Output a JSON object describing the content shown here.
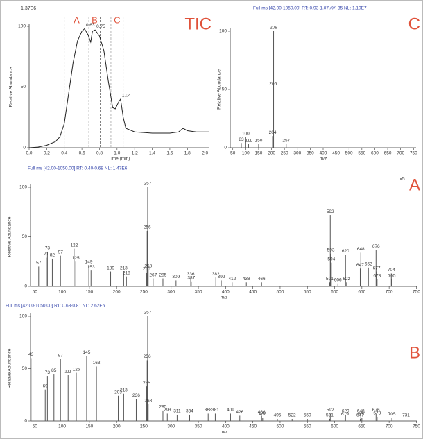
{
  "chart_data": [
    {
      "type": "line",
      "subtitle": "1.37E6",
      "panel_label": "TIC",
      "xlabel": "Time (min)",
      "ylabel": "Relative Abundance",
      "color": "#222222",
      "x": [
        0,
        0.1,
        0.2,
        0.3,
        0.35,
        0.4,
        0.45,
        0.5,
        0.55,
        0.6,
        0.63,
        0.67,
        0.7,
        0.72,
        0.75,
        0.8,
        0.85,
        0.9,
        0.95,
        0.98,
        1.02,
        1.04,
        1.07,
        1.1,
        1.2,
        1.4,
        1.6,
        1.7,
        1.75,
        1.8,
        1.9,
        2.0,
        2.05
      ],
      "values": [
        0,
        0.5,
        2,
        5,
        9,
        20,
        45,
        70,
        88,
        96,
        98,
        93,
        87,
        96,
        97,
        92,
        80,
        55,
        33,
        32,
        38,
        40,
        25,
        16,
        13,
        12,
        12,
        13,
        16,
        14,
        13,
        13,
        13
      ],
      "annotations": [
        {
          "x": 0.63,
          "y": 98
        },
        {
          "x": 0.75,
          "y": 97
        },
        {
          "x": 1.04,
          "y": 40
        }
      ],
      "regions": [
        {
          "label": "A",
          "range": [
            0.4,
            0.68
          ]
        },
        {
          "label": "B",
          "range": [
            0.68,
            0.81
          ]
        },
        {
          "label": "C",
          "range": [
            0.93,
            1.07
          ]
        }
      ],
      "xlim": [
        0,
        2.05
      ],
      "ylim": [
        0,
        100
      ],
      "xticks": [
        {
          "value": 0,
          "label": "0.0"
        },
        0.2,
        0.4,
        0.6,
        0.8,
        {
          "value": 1,
          "label": "1.0"
        },
        1.2,
        1.4,
        1.6,
        1.8,
        {
          "value": 2,
          "label": "2.0"
        }
      ],
      "yticks": [
        0,
        50,
        100
      ]
    },
    {
      "type": "spectrum",
      "title": "Full ms [42.00-1050.00]  RT: 0.93-1.07 AV: 35 NL: 1.10E7",
      "panel_label": "C",
      "xlabel": "m/z",
      "ylabel": "Relative Abundance",
      "color": "#555555",
      "x": [
        83,
        100,
        111,
        150,
        204,
        206,
        208,
        257
      ],
      "values": [
        4,
        9,
        3,
        3,
        10,
        52,
        100,
        3
      ],
      "xlim": [
        40,
        760
      ],
      "ylim": [
        0,
        100
      ],
      "xticks": [
        50,
        100,
        150,
        200,
        250,
        300,
        350,
        400,
        450,
        500,
        550,
        600,
        650,
        700,
        750
      ],
      "yticks": [
        0,
        50,
        100
      ]
    },
    {
      "type": "spectrum",
      "title": "Full ms [42.00-1050.00]  RT: 0.40-0.68  NL: 1.47E6",
      "panel_label": "A",
      "annotation": "x5",
      "xlabel": "m/z",
      "ylabel": "Relative Abundance",
      "color": "#555555",
      "x": [
        57,
        71,
        73,
        82,
        97,
        122,
        125,
        149,
        153,
        189,
        213,
        218,
        255,
        256,
        257,
        258,
        267,
        285,
        309,
        336,
        337,
        382,
        392,
        412,
        438,
        466,
        591,
        592,
        593,
        594,
        606,
        620,
        622,
        647,
        648,
        662,
        676,
        677,
        678,
        704,
        705
      ],
      "values": [
        20,
        29,
        35,
        28,
        31,
        38,
        25,
        21,
        16,
        15,
        15,
        10,
        14,
        56,
        100,
        17,
        8,
        8,
        6,
        9,
        5,
        9,
        6,
        4,
        4,
        4,
        4,
        72,
        33,
        24,
        3,
        32,
        4,
        18,
        34,
        19,
        37,
        15,
        7,
        13,
        7
      ],
      "xlim": [
        42,
        752
      ],
      "ylim": [
        0,
        100
      ],
      "xticks": [
        50,
        100,
        150,
        200,
        250,
        300,
        350,
        400,
        450,
        500,
        550,
        600,
        650,
        700,
        750
      ],
      "yticks": [
        0,
        50,
        100
      ]
    },
    {
      "type": "spectrum",
      "title": "Full ms [42.00-1050.00]  RT: 0.68-0.81  NL: 2.62E6",
      "panel_label": "B",
      "xlabel": "m/z",
      "ylabel": "Relative Abundance",
      "color": "#555555",
      "x": [
        43,
        69,
        73,
        85,
        97,
        111,
        126,
        145,
        163,
        203,
        213,
        236,
        255,
        256,
        257,
        258,
        285,
        293,
        311,
        334,
        368,
        381,
        409,
        426,
        466,
        468,
        495,
        522,
        550,
        591,
        592,
        619,
        620,
        647,
        648,
        650,
        676,
        678,
        705,
        731
      ],
      "values": [
        60,
        30,
        43,
        45,
        59,
        44,
        46,
        62,
        52,
        24,
        26,
        21,
        33,
        58,
        100,
        16,
        10,
        7,
        6,
        6,
        7,
        7,
        7,
        5,
        5,
        3,
        2,
        2,
        2,
        2,
        7,
        3,
        6,
        2,
        6,
        3,
        7,
        4,
        3,
        2
      ],
      "xlim": [
        42,
        752
      ],
      "ylim": [
        0,
        100
      ],
      "xticks": [
        50,
        100,
        150,
        200,
        250,
        300,
        350,
        400,
        450,
        500,
        550,
        600,
        650,
        700,
        750
      ],
      "yticks": [
        0,
        50,
        100
      ]
    }
  ]
}
